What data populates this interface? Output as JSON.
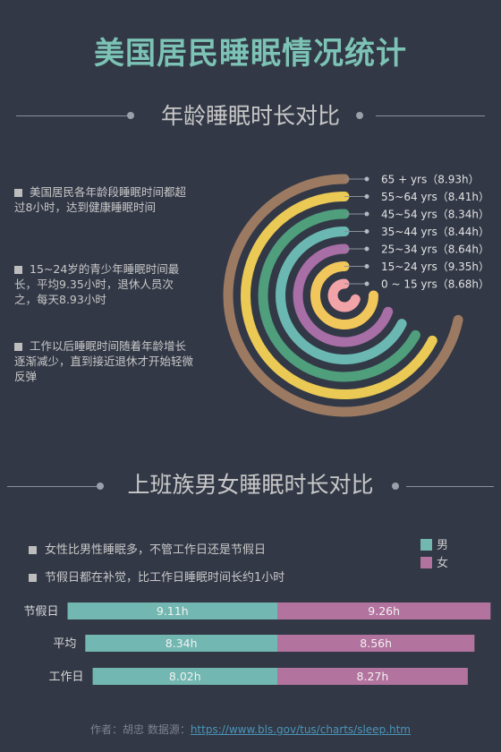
{
  "title": "美国居民睡眠情况统计",
  "section1": {
    "heading": "年龄睡眠时长对比",
    "notes": [
      "美国居民各年龄段睡眠时间都超过8小时，达到健康睡眠时间",
      "15~24岁的青少年睡眠时间最长，平均9.35小时，退休人员次之，每天8.93小时",
      "工作以后睡眠时间随着年龄增长逐渐减少，直到接近退休才开始轻微反弹"
    ]
  },
  "section2": {
    "heading": "上班族男女睡眠时长对比",
    "notes": [
      "女性比男性睡眠多，不管工作日还是节假日",
      "节假日都在补觉，比工作日睡眠时间长约1小时"
    ],
    "legend": [
      {
        "label": "男",
        "color": "#72b7b1"
      },
      {
        "label": "女",
        "color": "#b2739e"
      }
    ]
  },
  "footer": {
    "prefix": "作者：胡忠   数据源：",
    "link": "https://www.bls.gov/tus/charts/sleep.htm"
  },
  "chart_data": [
    {
      "type": "radial-bar",
      "unit": "h",
      "categories": [
        "0 ~ 15 yrs",
        "15~24 yrs",
        "25~34 yrs",
        "35~44 yrs",
        "45~54 yrs",
        "55~64 yrs",
        "65  +   yrs"
      ],
      "labels": [
        "0 ~ 15 yrs（8.68h）",
        "15~24 yrs（9.35h）",
        "25~34 yrs（8.64h）",
        "35~44 yrs（8.44h）",
        "45~54 yrs（8.34h）",
        "55~64 yrs（8.41h）",
        "65  +   yrs（8.93h）"
      ],
      "values": [
        8.68,
        9.35,
        8.64,
        8.44,
        8.34,
        8.41,
        8.93
      ],
      "colors": [
        "#f2a3a8",
        "#f1c65b",
        "#a86ea6",
        "#6ab8b1",
        "#4f9e7c",
        "#eac955",
        "#9c7a62"
      ]
    },
    {
      "type": "bar",
      "stacked": true,
      "orientation": "horizontal",
      "categories": [
        "节假日",
        "平均",
        "工作日"
      ],
      "series": [
        {
          "name": "男",
          "values": [
            9.11,
            8.34,
            8.02
          ],
          "labels": [
            "9.11h",
            "8.34h",
            "8.02h"
          ],
          "color": "#72b7b1"
        },
        {
          "name": "女",
          "values": [
            9.26,
            8.56,
            8.27
          ],
          "labels": [
            "9.26h",
            "8.56h",
            "8.27h"
          ],
          "color": "#b2739e"
        }
      ]
    }
  ]
}
